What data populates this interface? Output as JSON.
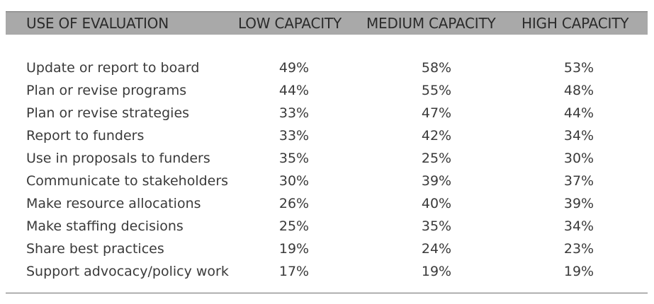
{
  "header": {
    "col0": "USE OF EVALUATION",
    "col1": "LOW CAPACITY",
    "col2": "MEDIUM CAPACITY",
    "col3": "HIGH CAPACITY"
  },
  "rows": [
    {
      "label": "Update or report to board",
      "low": "49%",
      "medium": "58%",
      "high": "53%"
    },
    {
      "label": "Plan or revise programs",
      "low": "44%",
      "medium": "55%",
      "high": "48%"
    },
    {
      "label": "Plan or revise strategies",
      "low": "33%",
      "medium": "47%",
      "high": "44%"
    },
    {
      "label": "Report to funders",
      "low": "33%",
      "medium": "42%",
      "high": "34%"
    },
    {
      "label": "Use in proposals to funders",
      "low": "35%",
      "medium": "25%",
      "high": "30%"
    },
    {
      "label": "Communicate to stakeholders",
      "low": "30%",
      "medium": "39%",
      "high": "37%"
    },
    {
      "label": "Make resource allocations",
      "low": "26%",
      "medium": "40%",
      "high": "39%"
    },
    {
      "label": "Make staffing decisions",
      "low": "25%",
      "medium": "35%",
      "high": "34%"
    },
    {
      "label": "Share best practices",
      "low": "19%",
      "medium": "24%",
      "high": "23%"
    },
    {
      "label": "Support advocacy/policy work",
      "low": "17%",
      "medium": "19%",
      "high": "19%"
    }
  ],
  "colors": {
    "header_bg": "#a9a9a9",
    "rule": "#6e6e6e",
    "text": "#3a3a3a"
  }
}
